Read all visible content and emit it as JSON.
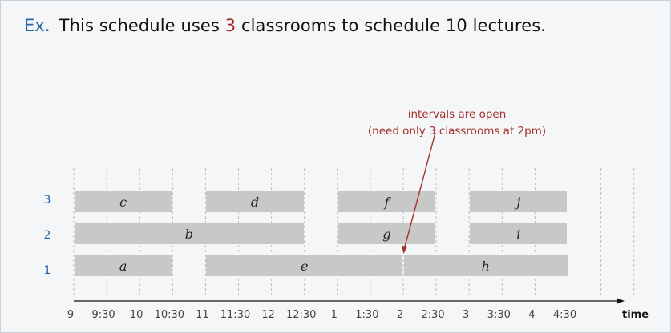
{
  "heading": {
    "prefix": "Ex.",
    "text_before": "This schedule uses ",
    "classrooms": "3",
    "text_after": " classrooms to schedule 10 lectures."
  },
  "rooms": [
    {
      "label": "3"
    },
    {
      "label": "2"
    },
    {
      "label": "1"
    }
  ],
  "time_ticks": [
    "9",
    "9:30",
    "10",
    "10:30",
    "11",
    "11:30",
    "12",
    "12:30",
    "1",
    "1:30",
    "2",
    "2:30",
    "3",
    "3:30",
    "4",
    "4:30"
  ],
  "axis_label": "time",
  "annotation": {
    "line1": "intervals are open",
    "line2": "(need only 3 classrooms at 2pm)"
  },
  "lectures": [
    {
      "name": "c",
      "room": "3",
      "start": "9",
      "end": "10:30"
    },
    {
      "name": "d",
      "room": "3",
      "start": "11",
      "end": "12:30"
    },
    {
      "name": "f",
      "room": "3",
      "start": "1",
      "end": "2:30"
    },
    {
      "name": "j",
      "room": "3",
      "start": "3",
      "end": "4:30"
    },
    {
      "name": "b",
      "room": "2",
      "start": "9",
      "end": "12:30"
    },
    {
      "name": "g",
      "room": "2",
      "start": "1",
      "end": "2:30"
    },
    {
      "name": "i",
      "room": "2",
      "start": "3",
      "end": "4:30"
    },
    {
      "name": "a",
      "room": "1",
      "start": "9",
      "end": "10:30"
    },
    {
      "name": "e",
      "room": "1",
      "start": "11",
      "end": "2"
    },
    {
      "name": "h",
      "room": "1",
      "start": "2",
      "end": "4:30"
    }
  ],
  "colors": {
    "accent_blue": "#2a64a8",
    "accent_red": "#a3312a",
    "interval_fill": "#c8c8c8"
  }
}
